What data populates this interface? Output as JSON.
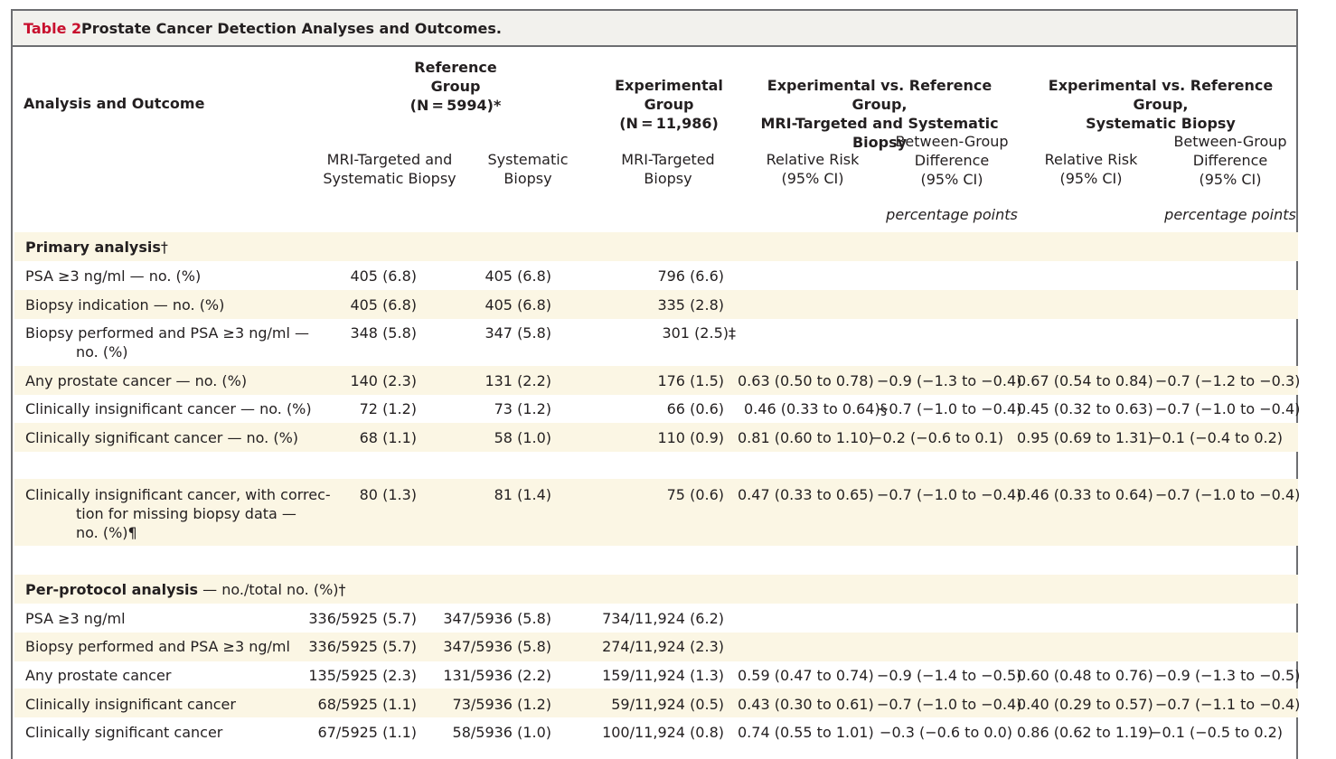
{
  "table": {
    "label": "Table 2.",
    "title": "Prostate Cancer Detection Analyses and Outcomes.",
    "header": {
      "stub": "Analysis and Outcome",
      "reference": [
        "Reference",
        "Group",
        "(N = 5994)*"
      ],
      "experimental": [
        "Experimental Group",
        "(N = 11,986)"
      ],
      "exp_vs_ref_both": [
        "Experimental vs. Reference Group,",
        "MRI-Targeted and Systematic Biopsy"
      ],
      "exp_vs_ref_sys": [
        "Experimental vs. Reference Group,",
        "Systematic Biopsy"
      ],
      "sub": {
        "c1": [
          "MRI-Targeted and",
          "Systematic Biopsy"
        ],
        "c2": [
          "Systematic",
          "Biopsy"
        ],
        "c3": [
          "MRI-Targeted",
          "Biopsy"
        ],
        "c4": [
          "Relative Risk",
          "(95% CI)"
        ],
        "c5": [
          "Between-Group",
          "Difference",
          "(95% CI)"
        ],
        "c6": [
          "Relative Risk",
          "(95% CI)"
        ],
        "c7": [
          "Between-Group",
          "Difference",
          "(95% CI)"
        ]
      },
      "unit_c5": "percentage points",
      "unit_c7": "percentage points"
    },
    "sections": {
      "primary": {
        "label": "Primary analysis",
        "mark": "†"
      },
      "per_protocol": {
        "label": "Per-protocol analysis",
        "tail": " — no./total no. (%)",
        "mark": "†"
      }
    },
    "rows": [
      {
        "label": [
          "PSA ≥3 ng/ml — no. (%)"
        ],
        "c1": "405 (6.8)",
        "c2": "405 (6.8)",
        "c3": "796 (6.6)",
        "c4": "",
        "c5": "",
        "c6": "",
        "c7": ""
      },
      {
        "label": [
          "Biopsy indication — no. (%)"
        ],
        "c1": "405 (6.8)",
        "c2": "405 (6.8)",
        "c3": "335 (2.8)",
        "c4": "",
        "c5": "",
        "c6": "",
        "c7": ""
      },
      {
        "label": [
          "Biopsy performed and PSA ≥3 ng/ml —",
          "no. (%)"
        ],
        "c1": "348 (5.8)",
        "c2": "347 (5.8)",
        "c3": "301 (2.5)‡",
        "c4": "",
        "c5": "",
        "c6": "",
        "c7": ""
      },
      {
        "label": [
          "Any prostate cancer — no. (%)"
        ],
        "c1": "140 (2.3)",
        "c2": "131 (2.2)",
        "c3": "176 (1.5)",
        "c4": "0.63 (0.50 to 0.78)",
        "c5": "−0.9 (−1.3 to −0.4)",
        "c6": "0.67 (0.54 to 0.84)",
        "c7": "−0.7 (−1.2 to −0.3)"
      },
      {
        "label": [
          "Clinically insignificant cancer — no. (%)"
        ],
        "c1": "72 (1.2)",
        "c2": "73 (1.2)",
        "c3": "66 (0.6)",
        "c4": "0.46 (0.33 to 0.64)§",
        "c5": "−0.7 (−1.0 to −0.4)",
        "c6": "0.45 (0.32 to 0.63)",
        "c7": "−0.7 (−1.0 to −0.4)"
      },
      {
        "label": [
          "Clinically significant cancer — no. (%)"
        ],
        "c1": "68 (1.1)",
        "c2": "58 (1.0)",
        "c3": "110 (0.9)",
        "c4": "0.81 (0.60 to 1.10)",
        "c5": "−0.2 (−0.6 to 0.1)",
        "c6": "0.95 (0.69 to 1.31)",
        "c7": "−0.1 (−0.4 to 0.2)"
      },
      {
        "label": [
          "Clinically insignificant cancer, with correc-",
          "tion for missing biopsy data —",
          "no. (%)¶"
        ],
        "c1": "80 (1.3)",
        "c2": "81 (1.4)",
        "c3": "75 (0.6)",
        "c4": "0.47 (0.33 to 0.65)",
        "c5": "−0.7 (−1.0 to −0.4)",
        "c6": "0.46 (0.33 to 0.64)",
        "c7": "−0.7 (−1.0 to −0.4)"
      },
      {
        "label": [
          "PSA ≥3 ng/ml"
        ],
        "c1": "336/5925 (5.7)",
        "c2": "347/5936 (5.8)",
        "c3": "734/11,924 (6.2)",
        "c4": "",
        "c5": "",
        "c6": "",
        "c7": ""
      },
      {
        "label": [
          "Biopsy performed and PSA ≥3 ng/ml"
        ],
        "c1": "336/5925 (5.7)",
        "c2": "347/5936 (5.8)",
        "c3": "274/11,924 (2.3)",
        "c4": "",
        "c5": "",
        "c6": "",
        "c7": ""
      },
      {
        "label": [
          "Any prostate cancer"
        ],
        "c1": "135/5925 (2.3)",
        "c2": "131/5936 (2.2)",
        "c3": "159/11,924 (1.3)",
        "c4": "0.59 (0.47 to 0.74)",
        "c5": "−0.9 (−1.4 to −0.5)",
        "c6": "0.60 (0.48 to 0.76)",
        "c7": "−0.9 (−1.3 to −0.5)"
      },
      {
        "label": [
          "Clinically insignificant cancer"
        ],
        "c1": "68/5925 (1.1)",
        "c2": "73/5936 (1.2)",
        "c3": "59/11,924 (0.5)",
        "c4": "0.43 (0.30 to 0.61)",
        "c5": "−0.7 (−1.0 to −0.4)",
        "c6": "0.40 (0.29 to 0.57)",
        "c7": "−0.7 (−1.1 to −0.4)"
      },
      {
        "label": [
          "Clinically significant cancer"
        ],
        "c1": "67/5925 (1.1)",
        "c2": "58/5936 (1.0)",
        "c3": "100/11,924 (0.8)",
        "c4": "0.74 (0.55 to 1.01)",
        "c5": "−0.3 (−0.6 to 0.0)",
        "c6": "0.86 (0.62 to 1.19)",
        "c7": "−0.1 (−0.5 to 0.2)"
      }
    ]
  }
}
